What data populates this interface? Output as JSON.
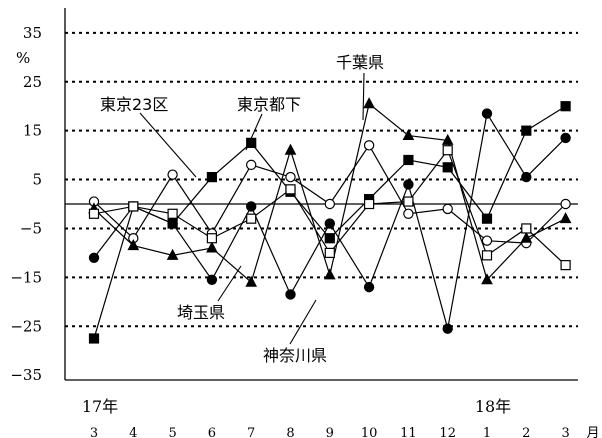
{
  "chart_data": {
    "type": "line",
    "ylabel": "%",
    "ylim": [
      -35,
      35
    ],
    "yticks": [
      35,
      25,
      15,
      5,
      -5,
      -15,
      -25,
      -35
    ],
    "grid": "dotted horizontal",
    "months": [
      "3",
      "4",
      "5",
      "6",
      "7",
      "8",
      "9",
      "10",
      "11",
      "12",
      "1",
      "2",
      "3"
    ],
    "month_unit": "月",
    "year_labels": [
      {
        "label": "17年",
        "month_index": 0
      },
      {
        "label": "18年",
        "month_index": 10
      }
    ],
    "series": [
      {
        "name": "東京23区",
        "marker": "circle-open",
        "values": [
          0.5,
          -7,
          6,
          -6,
          8,
          5.5,
          0,
          12,
          -2,
          -1,
          -7.5,
          -8,
          0
        ]
      },
      {
        "name": "東京都下",
        "marker": "square-filled",
        "values": [
          -27.5,
          -0.5,
          -4,
          5.5,
          12.5,
          2.5,
          -7,
          1,
          9,
          7.5,
          -3,
          15,
          20
        ]
      },
      {
        "name": "千葉県",
        "marker": "triangle-filled",
        "values": [
          -1,
          -8.5,
          -10.5,
          -9,
          -16,
          11,
          -14.5,
          20.5,
          14,
          13,
          -15.5,
          -7,
          -3
        ]
      },
      {
        "name": "埼玉県",
        "marker": "circle-filled",
        "values": [
          -11,
          -0.5,
          -4,
          -15.5,
          -0.5,
          -18.5,
          -4,
          -17,
          4,
          -25.5,
          18.5,
          5.5,
          13.5
        ]
      },
      {
        "name": "神奈川県",
        "marker": "square-open",
        "values": [
          -2,
          -0.5,
          -2,
          -7,
          -3,
          3,
          -10,
          0,
          0.5,
          11,
          -10.5,
          -5,
          -12.5
        ]
      }
    ],
    "annotations": [
      "東京23区",
      "東京都下",
      "千葉県",
      "埼玉県",
      "神奈川県"
    ]
  }
}
